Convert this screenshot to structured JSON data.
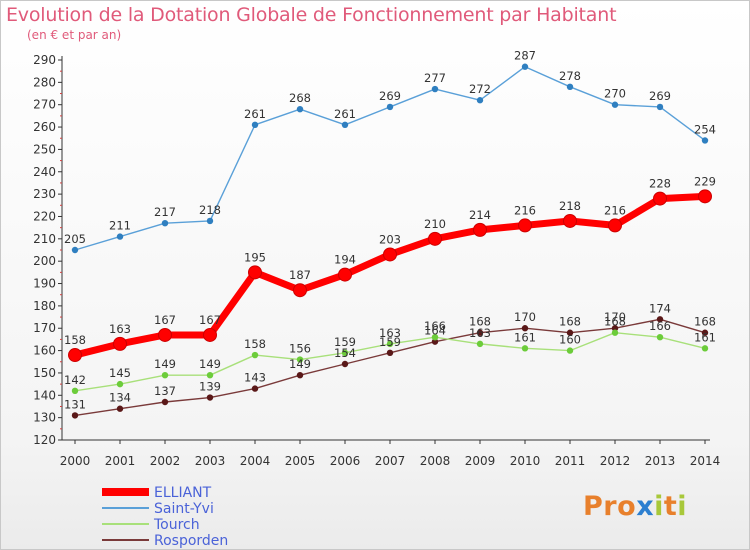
{
  "header": {
    "title": "Evolution de la Dotation Globale de Fonctionnement par Habitant",
    "subtitle": "(en € et par an)"
  },
  "brand": {
    "text": "Proxiti",
    "colors": [
      "#e8802c",
      "#e8802c",
      "#e8802c",
      "#2c7fd0",
      "#a8c83a",
      "#e8802c",
      "#a8c83a"
    ]
  },
  "chart_data": {
    "type": "line",
    "title": "Evolution de la Dotation Globale de Fonctionnement par Habitant",
    "subtitle": "(en € et par an)",
    "x": [
      2000,
      2001,
      2002,
      2003,
      2004,
      2005,
      2006,
      2007,
      2008,
      2009,
      2010,
      2011,
      2012,
      2013,
      2014
    ],
    "ylim": [
      120,
      290
    ],
    "yticks": [
      120,
      130,
      140,
      150,
      160,
      170,
      180,
      190,
      200,
      210,
      220,
      230,
      240,
      250,
      260,
      270,
      280,
      290
    ],
    "grid": false,
    "legend_position": "bottom-left",
    "series": [
      {
        "name": "ELLIANT",
        "color": "#ff0000",
        "marker_color": "#ff0000",
        "values": [
          158,
          163,
          167,
          167,
          195,
          187,
          194,
          203,
          210,
          214,
          216,
          218,
          216,
          228,
          229
        ],
        "labels": [
          "158",
          "163",
          "167",
          "167",
          "195",
          "187",
          "194",
          "203",
          "210",
          "214",
          "216",
          "218",
          "216",
          "228",
          "229"
        ]
      },
      {
        "name": "Saint-Yvi",
        "color": "#5aa0d8",
        "marker_color": "#2f7fc0",
        "values": [
          205,
          211,
          217,
          218,
          261,
          268,
          261,
          269,
          277,
          272,
          287,
          278,
          270,
          269,
          254
        ],
        "labels": [
          "205",
          "211",
          "217",
          "218",
          "261",
          "268",
          "261",
          "269",
          "277",
          "272",
          "287",
          "278",
          "270",
          "269",
          "254"
        ]
      },
      {
        "name": "Tourch",
        "color": "#a8e07a",
        "marker_color": "#6ccc3a",
        "values": [
          142,
          145,
          149,
          149,
          158,
          156,
          159,
          163,
          166,
          163,
          161,
          160,
          168,
          166,
          161
        ],
        "labels": [
          "142",
          "145",
          "149",
          "149",
          "158",
          "156",
          "159",
          "163",
          "166",
          "163",
          "161",
          "160",
          "168",
          "166",
          "161"
        ]
      },
      {
        "name": "Rosporden",
        "color": "#7a3a3a",
        "marker_color": "#5a1818",
        "values": [
          131,
          134,
          137,
          139,
          143,
          149,
          154,
          159,
          164,
          168,
          170,
          168,
          170,
          174,
          168
        ],
        "labels": [
          "131",
          "134",
          "137",
          "139",
          "143",
          "149",
          "154",
          "159",
          "164",
          "168",
          "170",
          "168",
          "170",
          "174",
          "168"
        ]
      }
    ]
  }
}
